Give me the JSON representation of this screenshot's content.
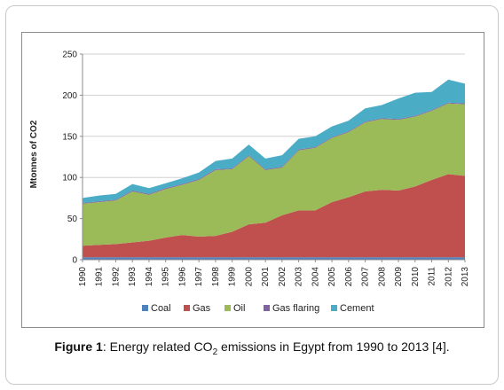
{
  "caption": {
    "fig_label": "Figure 1",
    "pre": ": Energy related CO",
    "sub": "2",
    "post": " emissions in Egypt from 1990 to 2013 [4]."
  },
  "chart_data": {
    "type": "area",
    "stacked": true,
    "title": "",
    "xlabel": "",
    "ylabel": "Mtonnes of CO2",
    "ylim": [
      0,
      250
    ],
    "yticks": [
      0,
      50,
      100,
      150,
      200,
      250
    ],
    "grid": true,
    "legend_position": "bottom",
    "categories": [
      "1990",
      "1991",
      "1992",
      "1993",
      "1994",
      "1995",
      "1996",
      "1997",
      "1998",
      "1999",
      "2000",
      "2001",
      "2002",
      "2003",
      "2004",
      "2005",
      "2006",
      "2007",
      "2008",
      "2009",
      "2010",
      "2011",
      "2012",
      "2013"
    ],
    "series": [
      {
        "name": "Coal",
        "color": "#4f81bd",
        "values": [
          3,
          3,
          3,
          3,
          3,
          3,
          3,
          3,
          3,
          3,
          3,
          3,
          3,
          3,
          3,
          3,
          3,
          3,
          3,
          3,
          3,
          3,
          3,
          3
        ]
      },
      {
        "name": "Gas",
        "color": "#c0504d",
        "values": [
          14,
          15,
          16,
          18,
          20,
          24,
          27,
          25,
          26,
          31,
          40,
          42,
          51,
          57,
          57,
          67,
          73,
          80,
          82,
          81,
          86,
          94,
          101,
          99
        ]
      },
      {
        "name": "Oil",
        "color": "#9bbb59",
        "values": [
          51,
          52,
          53,
          62,
          56,
          59,
          61,
          69,
          80,
          76,
          83,
          64,
          58,
          73,
          76,
          78,
          79,
          84,
          86,
          86,
          85,
          84,
          86,
          87
        ]
      },
      {
        "name": "Gas flaring",
        "color": "#8064a2",
        "values": [
          1,
          1,
          1,
          1,
          1,
          1,
          1,
          1,
          1,
          1,
          1,
          1,
          1,
          1,
          1,
          1,
          1,
          1,
          1,
          1,
          1,
          1,
          1,
          1
        ]
      },
      {
        "name": "Cement",
        "color": "#4bacc6",
        "values": [
          6,
          7,
          7,
          8,
          7,
          6,
          7,
          8,
          10,
          12,
          13,
          13,
          14,
          13,
          13,
          13,
          13,
          16,
          16,
          25,
          28,
          22,
          28,
          24
        ]
      }
    ]
  }
}
